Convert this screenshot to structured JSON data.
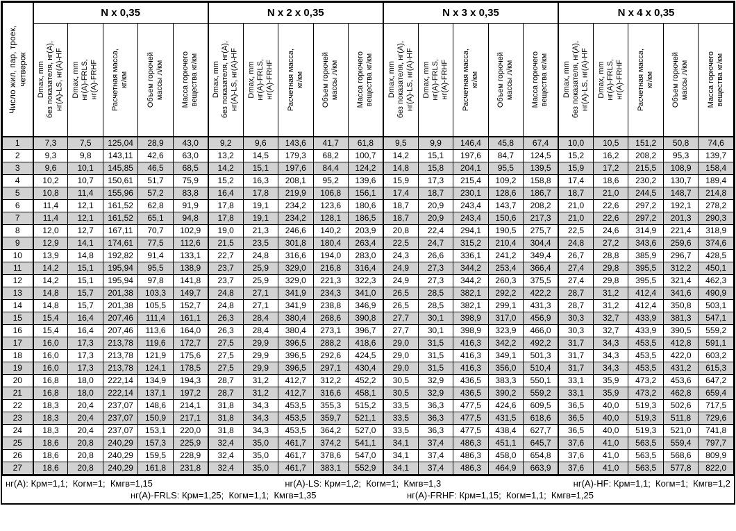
{
  "first_col_header": "Число жил, пар, троек,\nчетверок",
  "groups": [
    {
      "title": "N x 0,35"
    },
    {
      "title": "N x 2 x 0,35"
    },
    {
      "title": "N x 3 x 0,35"
    },
    {
      "title": "N x 4 x 0,35"
    }
  ],
  "sub_headers": [
    "Dmax, mm\nбез показателя, нг(А),\nнг(А)-LS, нг(А)-HF",
    "Dmax, mm\nнг(А)-FRLS,\nнг(А)-FRHF",
    "Расчетная масса,\nкг/км",
    "Объем горючей\nмассы л/км",
    "Масса горючего\nвещества кг/км"
  ],
  "rows": [
    [
      "1",
      "7,3",
      "7,5",
      "125,04",
      "28,9",
      "43,0",
      "9,2",
      "9,6",
      "143,6",
      "41,7",
      "61,8",
      "9,5",
      "9,9",
      "146,4",
      "45,8",
      "67,4",
      "10,0",
      "10,5",
      "151,2",
      "50,8",
      "74,6"
    ],
    [
      "2",
      "9,3",
      "9,8",
      "143,11",
      "42,6",
      "63,0",
      "13,2",
      "14,5",
      "179,3",
      "68,2",
      "100,7",
      "14,2",
      "15,1",
      "197,6",
      "84,7",
      "124,5",
      "15,2",
      "16,2",
      "208,2",
      "95,3",
      "139,7"
    ],
    [
      "3",
      "9,6",
      "10,1",
      "145,85",
      "46,5",
      "68,5",
      "14,2",
      "15,1",
      "197,6",
      "84,4",
      "124,2",
      "14,8",
      "15,8",
      "204,1",
      "95,5",
      "139,5",
      "15,9",
      "17,2",
      "215,5",
      "108,9",
      "158,4"
    ],
    [
      "4",
      "10,2",
      "10,7",
      "150,61",
      "51,7",
      "75,9",
      "15,2",
      "16,3",
      "208,1",
      "95,2",
      "139,6",
      "15,9",
      "17,3",
      "215,4",
      "109,2",
      "158,8",
      "17,4",
      "18,6",
      "230,2",
      "130,7",
      "189,4"
    ],
    [
      "5",
      "10,8",
      "11,4",
      "155,96",
      "57,2",
      "83,8",
      "16,4",
      "17,8",
      "219,9",
      "106,8",
      "156,1",
      "17,4",
      "18,7",
      "230,1",
      "128,6",
      "186,7",
      "18,7",
      "21,0",
      "244,5",
      "148,7",
      "214,8"
    ],
    [
      "6",
      "11,4",
      "12,1",
      "161,52",
      "62,8",
      "91,9",
      "17,8",
      "19,1",
      "234,2",
      "123,6",
      "180,6",
      "18,7",
      "20,9",
      "243,4",
      "143,7",
      "208,2",
      "21,0",
      "22,6",
      "297,2",
      "192,1",
      "278,2"
    ],
    [
      "7",
      "11,4",
      "12,1",
      "161,52",
      "65,1",
      "94,8",
      "17,8",
      "19,1",
      "234,2",
      "128,1",
      "186,5",
      "18,7",
      "20,9",
      "243,4",
      "150,6",
      "217,3",
      "21,0",
      "22,6",
      "297,2",
      "201,3",
      "290,3"
    ],
    [
      "8",
      "12,0",
      "12,7",
      "167,11",
      "70,7",
      "102,9",
      "19,0",
      "21,3",
      "246,6",
      "140,2",
      "203,9",
      "20,8",
      "22,4",
      "294,1",
      "190,5",
      "275,7",
      "22,5",
      "24,6",
      "314,9",
      "221,4",
      "318,9"
    ],
    [
      "9",
      "12,9",
      "14,1",
      "174,61",
      "77,5",
      "112,6",
      "21,5",
      "23,5",
      "301,8",
      "180,4",
      "263,4",
      "22,5",
      "24,7",
      "315,2",
      "210,4",
      "304,4",
      "24,8",
      "27,2",
      "343,6",
      "259,6",
      "374,6"
    ],
    [
      "10",
      "13,9",
      "14,8",
      "192,82",
      "91,4",
      "133,1",
      "22,7",
      "24,8",
      "316,6",
      "194,0",
      "283,0",
      "24,3",
      "26,6",
      "336,1",
      "241,2",
      "349,4",
      "26,7",
      "28,8",
      "385,9",
      "296,7",
      "428,5"
    ],
    [
      "11",
      "14,2",
      "15,1",
      "195,94",
      "95,5",
      "138,9",
      "23,7",
      "25,9",
      "329,0",
      "216,8",
      "316,4",
      "24,9",
      "27,3",
      "344,2",
      "253,4",
      "366,4",
      "27,4",
      "29,8",
      "395,5",
      "312,2",
      "450,1"
    ],
    [
      "12",
      "14,2",
      "15,1",
      "195,94",
      "97,8",
      "141,8",
      "23,7",
      "25,9",
      "329,0",
      "221,3",
      "322,3",
      "24,9",
      "27,3",
      "344,2",
      "260,3",
      "375,5",
      "27,4",
      "29,8",
      "395,5",
      "321,4",
      "462,3"
    ],
    [
      "13",
      "14,8",
      "15,7",
      "201,38",
      "103,3",
      "149,7",
      "24,8",
      "27,1",
      "341,9",
      "234,3",
      "341,0",
      "26,5",
      "28,5",
      "382,1",
      "292,2",
      "422,2",
      "28,7",
      "31,2",
      "412,4",
      "341,6",
      "490,9"
    ],
    [
      "14",
      "14,8",
      "15,7",
      "201,38",
      "105,5",
      "152,7",
      "24,8",
      "27,1",
      "341,9",
      "238,8",
      "346,9",
      "26,5",
      "28,5",
      "382,1",
      "299,1",
      "431,3",
      "28,7",
      "31,2",
      "412,4",
      "350,8",
      "503,1"
    ],
    [
      "15",
      "15,4",
      "16,4",
      "207,46",
      "111,4",
      "161,1",
      "26,3",
      "28,4",
      "380,4",
      "268,6",
      "390,8",
      "27,7",
      "30,1",
      "398,9",
      "317,0",
      "456,9",
      "30,3",
      "32,7",
      "433,9",
      "381,3",
      "547,1"
    ],
    [
      "16",
      "15,4",
      "16,4",
      "207,46",
      "113,6",
      "164,0",
      "26,3",
      "28,4",
      "380,4",
      "273,1",
      "396,7",
      "27,7",
      "30,1",
      "398,9",
      "323,9",
      "466,0",
      "30,3",
      "32,7",
      "433,9",
      "390,5",
      "559,2"
    ],
    [
      "17",
      "16,0",
      "17,3",
      "213,78",
      "119,6",
      "172,7",
      "27,5",
      "29,9",
      "396,5",
      "288,2",
      "418,6",
      "29,0",
      "31,5",
      "416,3",
      "342,2",
      "492,2",
      "31,7",
      "34,3",
      "453,5",
      "412,8",
      "591,1"
    ],
    [
      "18",
      "16,0",
      "17,3",
      "213,78",
      "121,9",
      "175,6",
      "27,5",
      "29,9",
      "396,5",
      "292,6",
      "424,5",
      "29,0",
      "31,5",
      "416,3",
      "349,1",
      "501,3",
      "31,7",
      "34,3",
      "453,5",
      "422,0",
      "603,2"
    ],
    [
      "19",
      "16,0",
      "17,3",
      "213,78",
      "124,1",
      "178,5",
      "27,5",
      "29,9",
      "396,5",
      "297,1",
      "430,4",
      "29,0",
      "31,5",
      "416,3",
      "356,0",
      "510,4",
      "31,7",
      "34,3",
      "453,5",
      "431,2",
      "615,3"
    ],
    [
      "20",
      "16,8",
      "18,0",
      "222,14",
      "134,9",
      "194,3",
      "28,7",
      "31,2",
      "412,7",
      "312,2",
      "452,2",
      "30,5",
      "32,9",
      "436,5",
      "383,3",
      "550,1",
      "33,1",
      "35,9",
      "473,2",
      "453,6",
      "647,2"
    ],
    [
      "21",
      "16,8",
      "18,0",
      "222,14",
      "137,1",
      "197,2",
      "28,7",
      "31,2",
      "412,7",
      "316,6",
      "458,1",
      "30,5",
      "32,9",
      "436,5",
      "390,2",
      "559,2",
      "33,1",
      "35,9",
      "473,2",
      "462,8",
      "659,4"
    ],
    [
      "22",
      "18,3",
      "20,4",
      "237,07",
      "148,6",
      "214,1",
      "31,8",
      "34,3",
      "453,5",
      "355,3",
      "515,2",
      "33,5",
      "36,3",
      "477,5",
      "424,6",
      "609,5",
      "36,5",
      "40,0",
      "519,3",
      "502,6",
      "717,5"
    ],
    [
      "23",
      "18,3",
      "20,4",
      "237,07",
      "150,9",
      "217,1",
      "31,8",
      "34,3",
      "453,5",
      "359,7",
      "521,1",
      "33,5",
      "36,3",
      "477,5",
      "431,5",
      "618,6",
      "36,5",
      "40,0",
      "519,3",
      "511,8",
      "729,6"
    ],
    [
      "24",
      "18,3",
      "20,4",
      "237,07",
      "153,1",
      "220,0",
      "31,8",
      "34,3",
      "453,5",
      "364,2",
      "527,0",
      "33,5",
      "36,3",
      "477,5",
      "438,4",
      "627,7",
      "36,5",
      "40,0",
      "519,3",
      "521,0",
      "741,8"
    ],
    [
      "25",
      "18,6",
      "20,8",
      "240,29",
      "157,3",
      "225,9",
      "32,4",
      "35,0",
      "461,7",
      "374,2",
      "541,1",
      "34,1",
      "37,4",
      "486,3",
      "451,1",
      "645,7",
      "37,6",
      "41,0",
      "563,5",
      "559,4",
      "797,7"
    ],
    [
      "26",
      "18,6",
      "20,8",
      "240,29",
      "159,5",
      "228,9",
      "32,4",
      "35,0",
      "461,7",
      "378,6",
      "547,0",
      "34,1",
      "37,4",
      "486,3",
      "458,0",
      "654,8",
      "37,6",
      "41,0",
      "563,5",
      "568,6",
      "809,9"
    ],
    [
      "27",
      "18,6",
      "20,8",
      "240,29",
      "161,8",
      "231,8",
      "32,4",
      "35,0",
      "461,7",
      "383,1",
      "552,9",
      "34,1",
      "37,4",
      "486,3",
      "464,9",
      "663,9",
      "37,6",
      "41,0",
      "563,5",
      "577,8",
      "822,0"
    ]
  ],
  "footer": {
    "line1": [
      "нг(А): Крм=1,1;  Когм=1;  Кмгв=1,15",
      "нг(А)-LS: Крм=1,2;  Когм=1;  Кмгв=1,3",
      "нг(А)-HF: Крм=1,1;  Когм=1;  Кмгв=1,2"
    ],
    "line2": [
      "нг(А)-FRLS: Крм=1,25;  Когм=1,1;  Кмгв=1,35",
      "нг(А)-FRHF: Крм=1,15;  Когм=1,1;  Кмгв=1,25"
    ]
  },
  "colors": {
    "stripe": "#d2d2d2",
    "border": "#000000",
    "background": "#ffffff",
    "text": "#000000"
  }
}
